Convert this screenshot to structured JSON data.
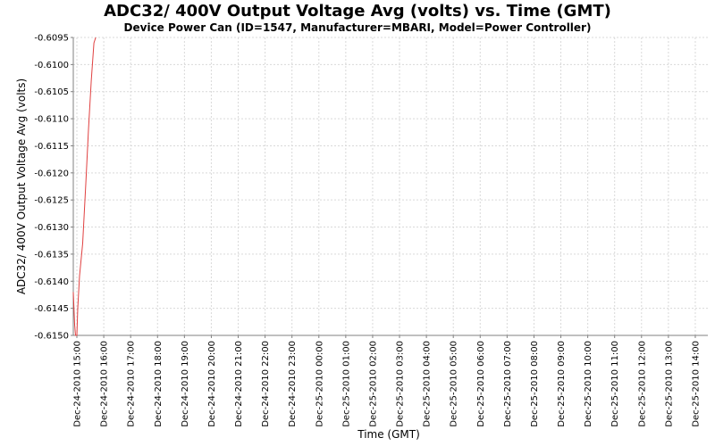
{
  "chart_data": {
    "type": "line",
    "title": "ADC32/ 400V Output Voltage Avg (volts) vs. Time (GMT)",
    "subtitle": "Device Power Can (ID=1547, Manufacturer=MBARI, Model=Power Controller)",
    "xlabel": "Time (GMT)",
    "ylabel": "ADC32/ 400V Output Voltage Avg (volts)",
    "ylim": [
      -0.615,
      -0.6095
    ],
    "yticks": [
      "-0.6095",
      "-0.6100",
      "-0.6105",
      "-0.6110",
      "-0.6115",
      "-0.6120",
      "-0.6125",
      "-0.6130",
      "-0.6135",
      "-0.6140",
      "-0.6145",
      "-0.6150"
    ],
    "xlim": [
      "Dec-24-2010 14:52",
      "Dec-25-2010 14:28"
    ],
    "xticks": [
      "Dec-24-2010 15:00",
      "Dec-24-2010 16:00",
      "Dec-24-2010 17:00",
      "Dec-24-2010 18:00",
      "Dec-24-2010 19:00",
      "Dec-24-2010 20:00",
      "Dec-24-2010 21:00",
      "Dec-24-2010 22:00",
      "Dec-24-2010 23:00",
      "Dec-25-2010 00:00",
      "Dec-25-2010 01:00",
      "Dec-25-2010 02:00",
      "Dec-25-2010 03:00",
      "Dec-25-2010 04:00",
      "Dec-25-2010 05:00",
      "Dec-25-2010 06:00",
      "Dec-25-2010 07:00",
      "Dec-25-2010 08:00",
      "Dec-25-2010 09:00",
      "Dec-25-2010 10:00",
      "Dec-25-2010 11:00",
      "Dec-25-2010 12:00",
      "Dec-25-2010 13:00",
      "Dec-25-2010 14:00"
    ],
    "grid": true,
    "series": [
      {
        "color": "#e04040",
        "points": [
          {
            "x": "Dec-24-2010 14:52",
            "y": -0.6142
          },
          {
            "x": "Dec-24-2010 14:55",
            "y": -0.6148
          },
          {
            "x": "Dec-24-2010 14:57",
            "y": -0.615
          },
          {
            "x": "Dec-24-2010 15:00",
            "y": -0.615
          },
          {
            "x": "Dec-24-2010 15:02",
            "y": -0.6145
          },
          {
            "x": "Dec-24-2010 15:06",
            "y": -0.6139
          },
          {
            "x": "Dec-24-2010 15:13",
            "y": -0.6133
          },
          {
            "x": "Dec-24-2010 15:20",
            "y": -0.6122
          },
          {
            "x": "Dec-24-2010 15:26",
            "y": -0.6112
          },
          {
            "x": "Dec-24-2010 15:32",
            "y": -0.6103
          },
          {
            "x": "Dec-24-2010 15:38",
            "y": -0.6096
          },
          {
            "x": "Dec-24-2010 15:42",
            "y": -0.6095
          }
        ]
      }
    ]
  },
  "colors": {
    "plot_background": "#ffffff",
    "gridline": "#d9d9d9",
    "axis": "#808080",
    "series": "#e04040"
  }
}
